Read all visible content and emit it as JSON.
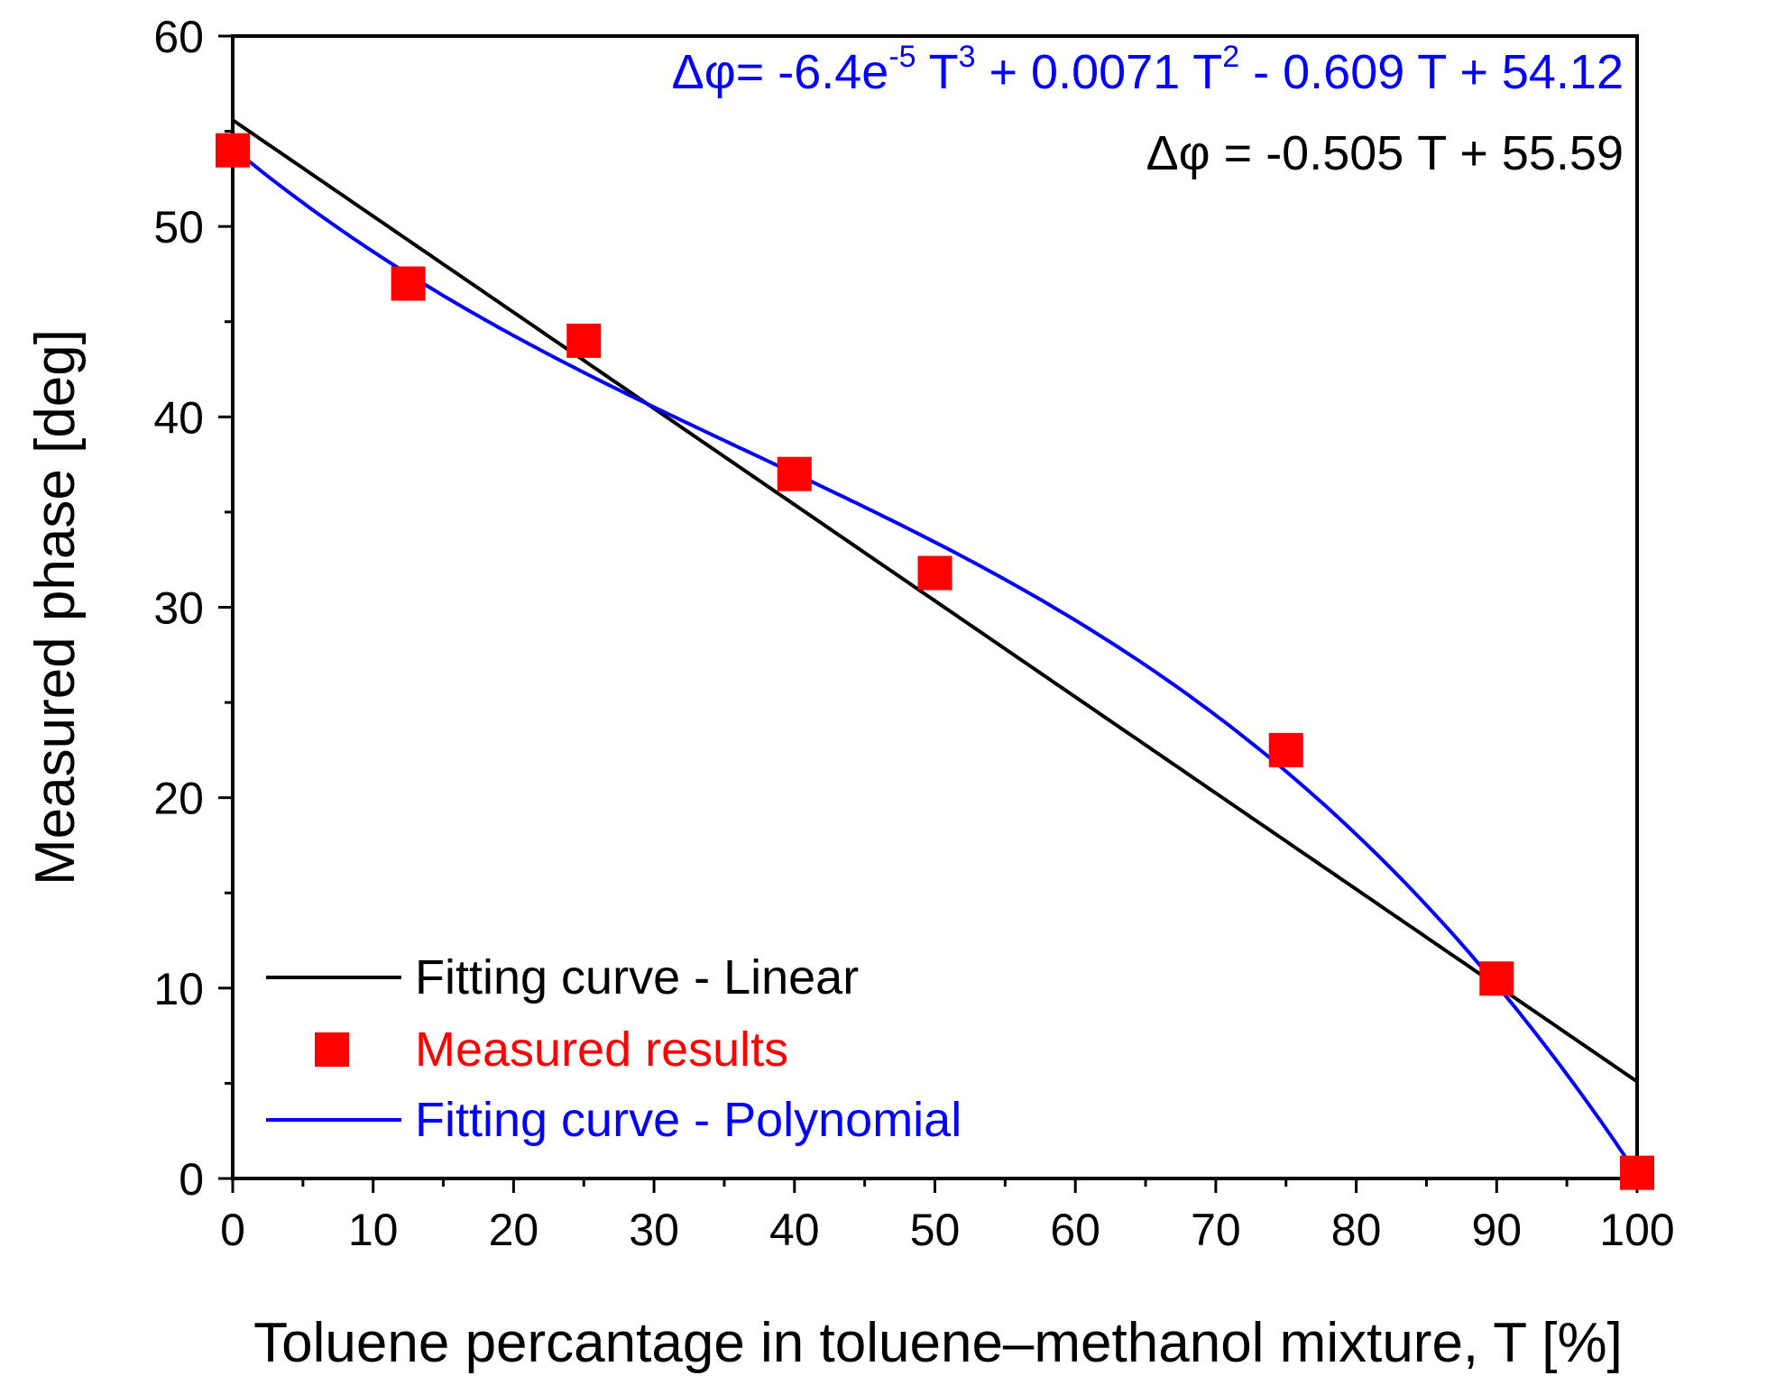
{
  "chart_data": {
    "type": "scatter",
    "xlabel": "Toluene percantage in toluene–methanol mixture, T [%]",
    "ylabel": "Measured phase [deg]",
    "xlim": [
      0,
      100
    ],
    "ylim": [
      0,
      60
    ],
    "x_major_ticks": [
      0,
      10,
      20,
      30,
      40,
      50,
      60,
      70,
      80,
      90,
      100
    ],
    "x_tick_labels": [
      "0",
      "10",
      "20",
      "30",
      "40",
      "50",
      "60",
      "70",
      "80",
      "90",
      "100"
    ],
    "y_major_ticks": [
      0,
      10,
      20,
      30,
      40,
      50,
      60
    ],
    "y_tick_labels": [
      "0",
      "10",
      "20",
      "30",
      "40",
      "50",
      "60"
    ],
    "x_minor_step": 5,
    "y_minor_step": 5,
    "grid": false,
    "series": [
      {
        "name": "Fitting curve - Linear",
        "kind": "line",
        "color": "#000000",
        "fit": {
          "type": "linear",
          "a1": -0.505,
          "a0": 55.59
        },
        "x_range": [
          0,
          100
        ]
      },
      {
        "name": "Measured results",
        "kind": "scatter",
        "color": "#ff0000",
        "marker": "square",
        "x": [
          0,
          12.5,
          25,
          40,
          50,
          75,
          90,
          100
        ],
        "y": [
          54,
          47,
          44,
          37,
          31.8,
          22.5,
          10.5,
          0.3
        ]
      },
      {
        "name": "Fitting curve - Polynomial",
        "kind": "line",
        "color": "#0000ff",
        "fit": {
          "type": "cubic",
          "a3": -6.4e-05,
          "a2": 0.0071,
          "a1": -0.609,
          "a0": 54.12
        },
        "x_range": [
          0,
          100
        ]
      }
    ],
    "annotations": [
      {
        "id": "poly_eq",
        "color": "#0000ff",
        "parts": [
          "Δφ= -6.4e",
          "-5",
          " T",
          "3",
          " + 0.0071 T",
          "2",
          " - 0.609 T + 54.12"
        ]
      },
      {
        "id": "linear_eq",
        "color": "#000000",
        "text": "Δφ = -0.505 T + 55.59"
      }
    ],
    "legend": {
      "placement": "bottom-left",
      "entries": [
        {
          "label": "Fitting curve - Linear",
          "color": "#000000",
          "symbol": "line"
        },
        {
          "label": "Measured results",
          "color": "#ff0000",
          "symbol": "square"
        },
        {
          "label": "Fitting curve - Polynomial",
          "color": "#0000ff",
          "symbol": "line"
        }
      ]
    }
  }
}
